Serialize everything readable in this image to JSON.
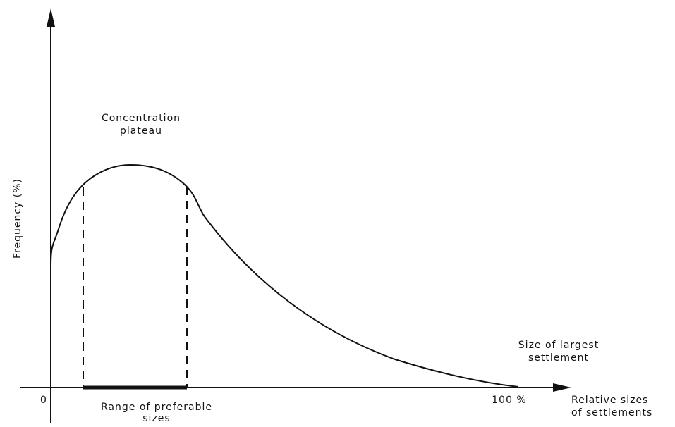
{
  "diagram": {
    "y_axis_label": "Frequency (%)",
    "x_axis_label": [
      "Relative sizes",
      "of settlements"
    ],
    "origin_label": "0",
    "end_label": "100 %",
    "plateau_label": [
      "Concentration",
      "plateau"
    ],
    "largest_label": [
      "Size of largest",
      "settlement"
    ],
    "range_label": [
      "Range of preferable",
      "sizes"
    ]
  }
}
